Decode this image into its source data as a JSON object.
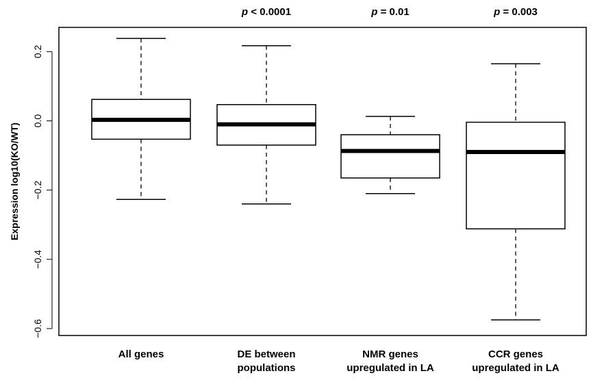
{
  "chart_data": {
    "type": "box",
    "ylabel": "Expression log10(KO/WT)",
    "ylim": [
      -0.62,
      0.27
    ],
    "yticks": [
      0.2,
      0.0,
      -0.2,
      -0.4,
      -0.6
    ],
    "ytick_labels": [
      "0.2",
      "0.0",
      "-0.2",
      "-0.4",
      "-0.6"
    ],
    "categories": [
      {
        "lines": [
          "All genes"
        ]
      },
      {
        "lines": [
          "DE between",
          "populations"
        ]
      },
      {
        "lines": [
          "NMR genes",
          "upregulated in LA"
        ]
      },
      {
        "lines": [
          "CCR genes",
          "upregulated in LA"
        ]
      }
    ],
    "boxes": [
      {
        "whisker_low": -0.227,
        "q1": -0.053,
        "median": 0.003,
        "q3": 0.062,
        "whisker_high": 0.238,
        "pvalue": null
      },
      {
        "whisker_low": -0.24,
        "q1": -0.07,
        "median": -0.01,
        "q3": 0.047,
        "whisker_high": 0.217,
        "pvalue": {
          "symbol": "p",
          "rest": " < 0.0001"
        }
      },
      {
        "whisker_low": -0.21,
        "q1": -0.165,
        "median": -0.087,
        "q3": -0.04,
        "whisker_high": 0.013,
        "pvalue": {
          "symbol": "p",
          "rest": " = 0.01"
        }
      },
      {
        "whisker_low": -0.575,
        "q1": -0.312,
        "median": -0.09,
        "q3": -0.004,
        "whisker_high": 0.165,
        "pvalue": {
          "symbol": "p",
          "rest": " = 0.003"
        }
      }
    ]
  }
}
